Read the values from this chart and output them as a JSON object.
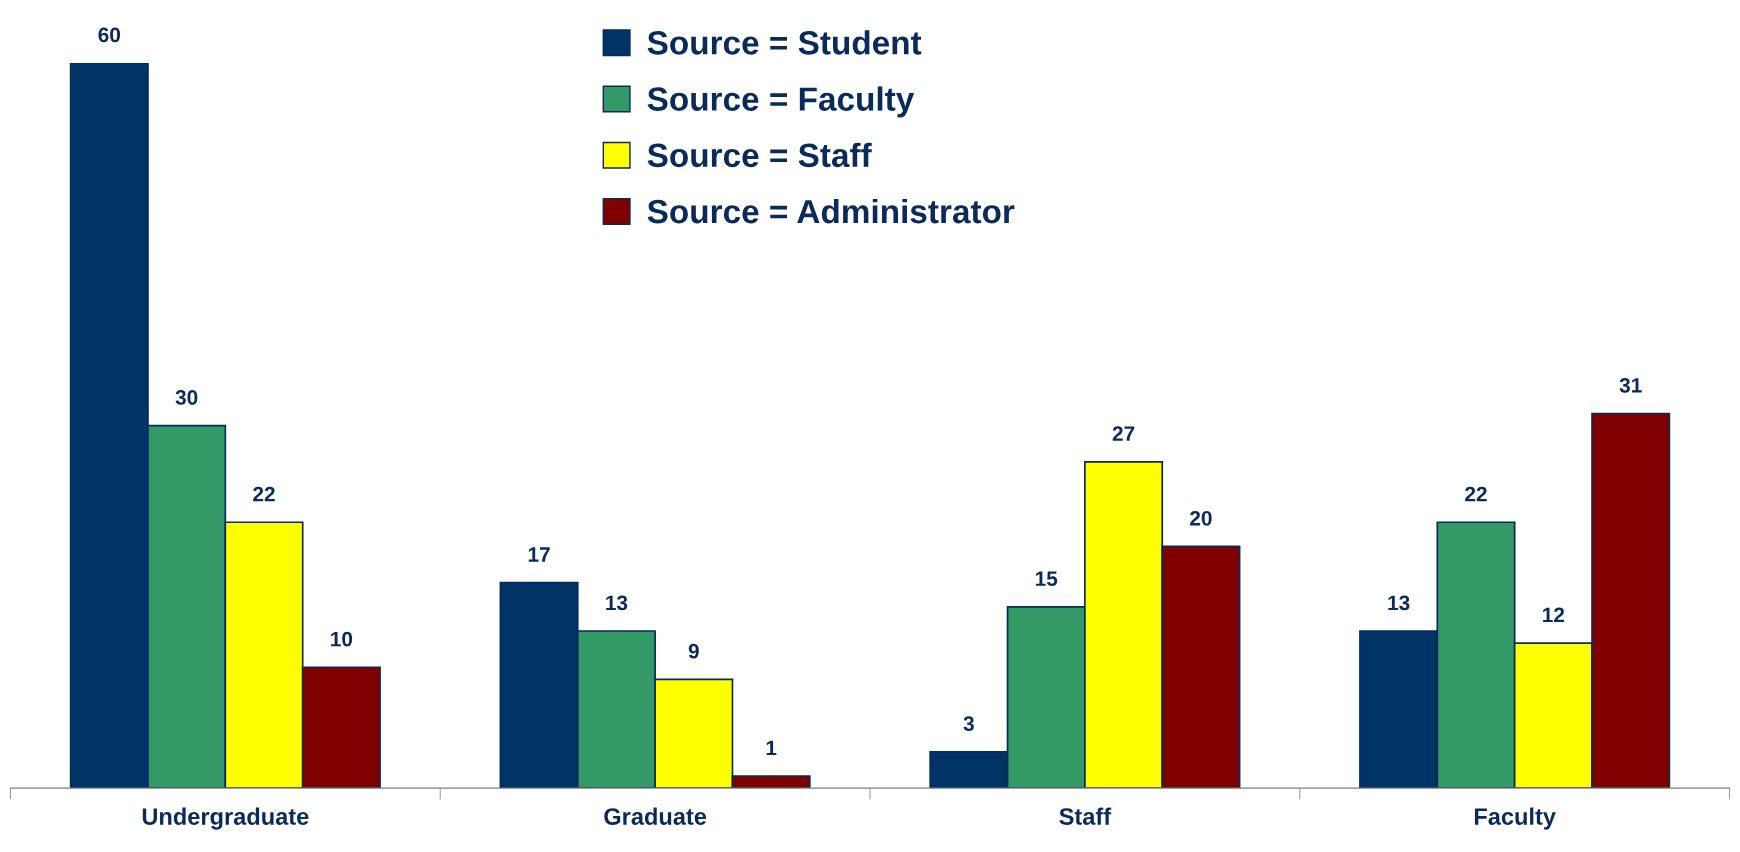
{
  "chart_data": {
    "type": "bar",
    "categories": [
      "Undergraduate",
      "Graduate",
      "Staff",
      "Faculty"
    ],
    "series": [
      {
        "name": "Source = Student",
        "color": "#003366",
        "values": [
          60,
          17,
          3,
          13
        ]
      },
      {
        "name": "Source = Faculty",
        "color": "#339966",
        "values": [
          30,
          13,
          15,
          22
        ]
      },
      {
        "name": "Source = Staff",
        "color": "#ffff00",
        "values": [
          22,
          9,
          27,
          12
        ]
      },
      {
        "name": "Source = Administrator",
        "color": "#800000",
        "values": [
          10,
          1,
          20,
          31
        ]
      }
    ],
    "data_labels": true,
    "legend": "top",
    "tick_labels": "x"
  }
}
